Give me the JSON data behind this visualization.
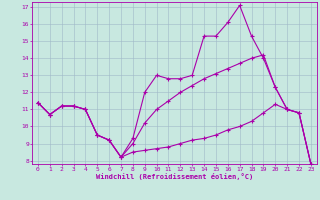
{
  "xlabel": "Windchill (Refroidissement éolien,°C)",
  "xlim": [
    -0.5,
    23.5
  ],
  "ylim": [
    7.8,
    17.3
  ],
  "yticks": [
    8,
    9,
    10,
    11,
    12,
    13,
    14,
    15,
    16,
    17
  ],
  "xticks": [
    0,
    1,
    2,
    3,
    4,
    5,
    6,
    7,
    8,
    9,
    10,
    11,
    12,
    13,
    14,
    15,
    16,
    17,
    18,
    19,
    20,
    21,
    22,
    23
  ],
  "bg_color": "#c8e8e0",
  "line_color": "#aa00aa",
  "grid_color": "#a0b8c8",
  "line1_x": [
    0,
    1,
    2,
    3,
    4,
    5,
    6,
    7,
    8,
    9,
    10,
    11,
    12,
    13,
    14,
    15,
    16,
    17,
    18,
    19,
    20,
    21,
    22,
    23
  ],
  "line1_y": [
    11.4,
    10.7,
    11.2,
    11.2,
    11.0,
    9.5,
    9.2,
    8.2,
    9.3,
    12.0,
    13.0,
    12.8,
    12.8,
    13.0,
    15.3,
    15.3,
    16.1,
    17.1,
    15.3,
    14.0,
    12.3,
    11.0,
    10.8,
    7.8
  ],
  "line2_x": [
    0,
    1,
    2,
    3,
    4,
    5,
    6,
    7,
    8,
    9,
    10,
    11,
    12,
    13,
    14,
    15,
    16,
    17,
    18,
    19,
    20,
    21,
    22,
    23
  ],
  "line2_y": [
    11.4,
    10.7,
    11.2,
    11.2,
    11.0,
    9.5,
    9.2,
    8.2,
    8.5,
    8.6,
    8.7,
    8.8,
    9.0,
    9.2,
    9.3,
    9.5,
    9.8,
    10.0,
    10.3,
    10.8,
    11.3,
    11.0,
    10.8,
    7.8
  ],
  "line3_x": [
    0,
    1,
    2,
    3,
    4,
    5,
    6,
    7,
    8,
    9,
    10,
    11,
    12,
    13,
    14,
    15,
    16,
    17,
    18,
    19,
    20,
    21,
    22,
    23
  ],
  "line3_y": [
    11.4,
    10.7,
    11.2,
    11.2,
    11.0,
    9.5,
    9.2,
    8.2,
    9.0,
    10.2,
    11.0,
    11.5,
    12.0,
    12.4,
    12.8,
    13.1,
    13.4,
    13.7,
    14.0,
    14.2,
    12.3,
    11.0,
    10.8,
    7.8
  ]
}
